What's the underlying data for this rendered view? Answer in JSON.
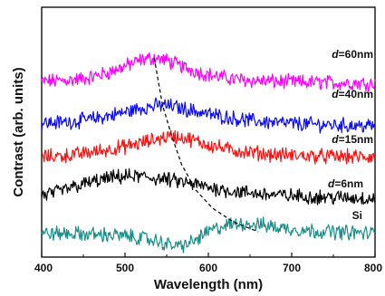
{
  "chart_data": {
    "type": "line",
    "xlabel": "Wavelength (nm)",
    "ylabel": "Contrast (arb. units)",
    "xlim": [
      400,
      800
    ],
    "xticks": [
      400,
      500,
      600,
      700,
      800
    ],
    "y_ticks_shown": false,
    "grid": false,
    "series": [
      {
        "name": "d=60nm",
        "prefix": "d",
        "suffix": "=60nm",
        "color": "#ff00ff",
        "offset": 4.0,
        "x": [
          400,
          420,
          440,
          460,
          480,
          500,
          520,
          535,
          550,
          570,
          590,
          610,
          630,
          650,
          680,
          710,
          740,
          770,
          800
        ],
        "y": [
          0.2,
          0.22,
          0.25,
          0.32,
          0.45,
          0.62,
          0.8,
          0.85,
          0.78,
          0.6,
          0.45,
          0.34,
          0.27,
          0.23,
          0.2,
          0.18,
          0.17,
          0.16,
          0.15
        ]
      },
      {
        "name": "d=40nm",
        "prefix": "d",
        "suffix": "=40nm",
        "color": "#0a0aff",
        "offset": 3.0,
        "x": [
          400,
          420,
          440,
          460,
          480,
          500,
          520,
          545,
          560,
          580,
          600,
          620,
          640,
          660,
          690,
          720,
          750,
          780,
          800
        ],
        "y": [
          0.05,
          0.07,
          0.1,
          0.16,
          0.25,
          0.35,
          0.47,
          0.55,
          0.5,
          0.4,
          0.3,
          0.22,
          0.15,
          0.1,
          0.05,
          0.02,
          0.0,
          -0.02,
          -0.03
        ]
      },
      {
        "name": "d=15nm",
        "prefix": "d",
        "suffix": "=15nm",
        "color": "#ff1010",
        "offset": 2.0,
        "x": [
          400,
          420,
          440,
          460,
          480,
          500,
          520,
          540,
          556,
          575,
          600,
          625,
          650,
          680,
          710,
          740,
          770,
          800
        ],
        "y": [
          0.12,
          0.14,
          0.18,
          0.25,
          0.32,
          0.4,
          0.5,
          0.62,
          0.7,
          0.62,
          0.45,
          0.32,
          0.24,
          0.18,
          0.15,
          0.13,
          0.12,
          0.11
        ]
      },
      {
        "name": "d=6nm",
        "prefix": "d",
        "suffix": "=6nm",
        "color": "#000000",
        "offset": 1.0,
        "x": [
          400,
          420,
          440,
          460,
          480,
          500,
          520,
          540,
          560,
          580,
          600,
          620,
          640,
          660,
          690,
          720,
          750,
          780,
          800
        ],
        "y": [
          0.05,
          0.15,
          0.3,
          0.42,
          0.52,
          0.58,
          0.57,
          0.52,
          0.45,
          0.37,
          0.28,
          0.2,
          0.14,
          0.1,
          0.05,
          0.02,
          0.0,
          -0.02,
          -0.03
        ]
      },
      {
        "name": "Si",
        "prefix": "",
        "suffix": "Si",
        "color": "#1a8f8a",
        "offset": 0.0,
        "x": [
          400,
          430,
          460,
          490,
          520,
          540,
          555,
          565,
          580,
          600,
          620,
          640,
          660,
          690,
          720,
          750,
          780,
          800
        ],
        "y": [
          0.0,
          0.0,
          -0.02,
          -0.05,
          -0.12,
          -0.22,
          -0.32,
          -0.35,
          -0.25,
          0.05,
          0.22,
          0.28,
          0.25,
          0.15,
          0.08,
          0.05,
          0.02,
          0.0
        ]
      }
    ],
    "annotation": {
      "type": "dashed-guide",
      "x": [
        535,
        545,
        556,
        568,
        585,
        605,
        630,
        660
      ],
      "y": [
        4.85,
        3.55,
        2.7,
        1.9,
        1.2,
        0.7,
        0.32,
        0.05
      ]
    }
  }
}
